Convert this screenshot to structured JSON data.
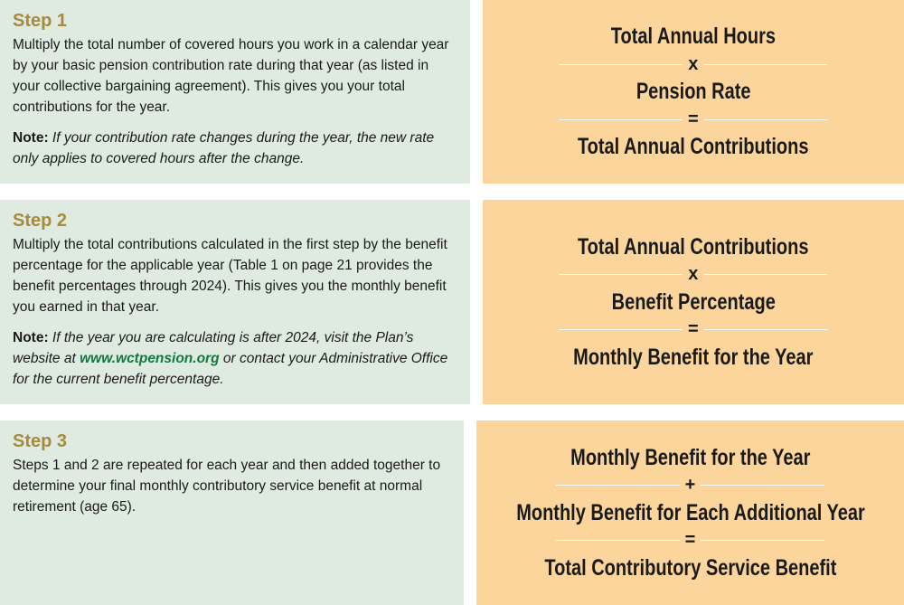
{
  "steps": [
    {
      "title": "Step 1",
      "body": "Multiply the total number of covered hours you work in a calendar year by your basic pension contribution rate during that year (as listed in your collective bargaining agreement). This gives you your total contributions for the year.",
      "note": {
        "label": "Note:",
        "text": "If your contribution rate changes during the year, the new rate only applies to covered hours after the change."
      },
      "formula": {
        "terms": [
          "Total Annual Hours",
          "Pension Rate",
          "Total Annual Contributions"
        ],
        "operators": [
          "x",
          "="
        ]
      }
    },
    {
      "title": "Step 2",
      "body": "Multiply the total contributions calculated in the first step by the benefit percentage for the applicable year (Table 1 on page 21 provides the benefit percentages through 2024). This gives you the monthly benefit you earned in that year.",
      "note": {
        "label": "Note:",
        "text_before": "If the year you are calculating is after 2024, visit the Plan’s website at",
        "link": "www.wctpension.org",
        "text_after": "or contact your Administrative Office for the current benefit percentage."
      },
      "formula": {
        "terms": [
          "Total Annual Contributions",
          "Benefit Percentage",
          "Monthly Benefit for the Year"
        ],
        "operators": [
          "x",
          "="
        ]
      }
    },
    {
      "title": "Step 3",
      "body": "Steps 1 and 2 are repeated for each year and then added together to determine your final monthly contributory service benefit at normal retirement (age 65).",
      "formula": {
        "terms": [
          "Monthly Benefit for the Year",
          "Monthly Benefit for Each Additional Year",
          "Total Contributory Service Benefit"
        ],
        "operators": [
          "+",
          "="
        ]
      }
    }
  ]
}
